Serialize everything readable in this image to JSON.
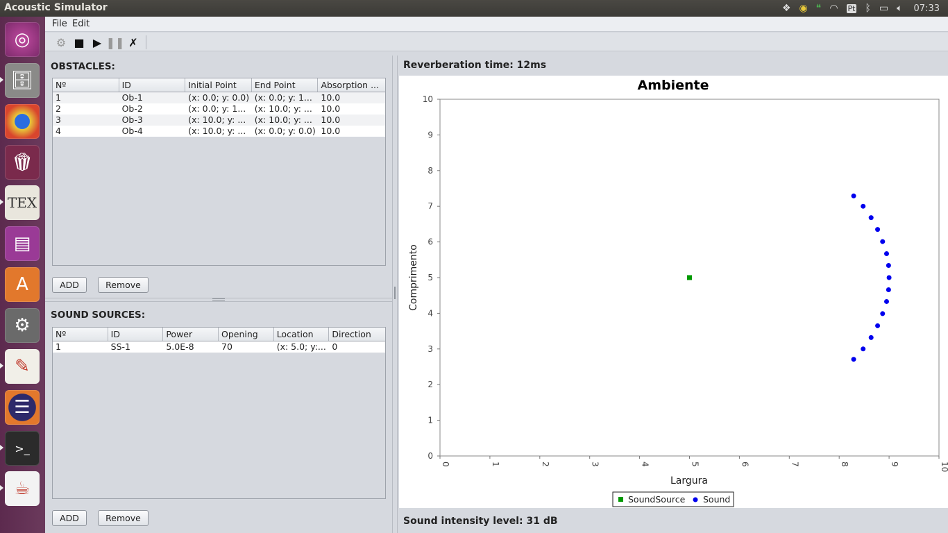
{
  "window": {
    "title": "Acoustic Simulator"
  },
  "tray": {
    "clock": "07:33",
    "icons": [
      "dropbox-icon",
      "chrome-icon",
      "hangouts-icon",
      "wifi-icon",
      "keyboard-icon",
      "bluetooth-icon",
      "battery-icon",
      "volume-icon"
    ],
    "keyboard_label": "Pt"
  },
  "launcher": {
    "items": [
      "ubuntu-dash",
      "file-manager",
      "chrome",
      "popcorn-time",
      "texmaker",
      "workspace-switcher",
      "software-center",
      "system-settings",
      "pdf-reader",
      "eclipse",
      "terminal",
      "java"
    ]
  },
  "menu": {
    "file": "File",
    "edit": "Edit"
  },
  "obstacles": {
    "title": "OBSTACLES:",
    "columns": [
      "Nº",
      "ID",
      "Initial Point",
      "End Point",
      "Absorption ..."
    ],
    "rows": [
      [
        "1",
        "Ob-1",
        "(x: 0.0; y: 0.0)",
        "(x: 0.0; y: 1...",
        "10.0"
      ],
      [
        "2",
        "Ob-2",
        "(x: 0.0; y: 1...",
        "(x: 10.0; y: ...",
        "10.0"
      ],
      [
        "3",
        "Ob-3",
        "(x: 10.0; y: ...",
        "(x: 10.0; y: ...",
        "10.0"
      ],
      [
        "4",
        "Ob-4",
        "(x: 10.0; y: ...",
        "(x: 0.0; y: 0.0)",
        "10.0"
      ]
    ],
    "add_label": "ADD",
    "remove_label": "Remove"
  },
  "sources": {
    "title": "SOUND SOURCES:",
    "columns": [
      "Nº",
      "ID",
      "Power",
      "Opening",
      "Location",
      "Direction"
    ],
    "rows": [
      [
        "1",
        "SS-1",
        "5.0E-8",
        "70",
        "(x: 5.0; y:...",
        "0"
      ]
    ],
    "add_label": "ADD",
    "remove_label": "Remove"
  },
  "reverb_text": "Reverberation time: 12ms",
  "intensity_text": "Sound intensity level: 31 dB",
  "chart_data": {
    "type": "scatter",
    "title": "Ambiente",
    "xlabel": "Largura",
    "ylabel": "Comprimento",
    "xlim": [
      0,
      10
    ],
    "ylim": [
      0,
      10
    ],
    "xticks": [
      "0",
      "1",
      "2",
      "3",
      "4",
      "5",
      "6",
      "7",
      "8",
      "9",
      "10"
    ],
    "yticks": [
      "0",
      "1",
      "2",
      "3",
      "4",
      "5",
      "6",
      "7",
      "8",
      "9",
      "10"
    ],
    "legend_placement": "bottom",
    "series": [
      {
        "name": "SoundSource",
        "color": "#009900",
        "marker": "square",
        "points": [
          [
            5.0,
            5.0
          ]
        ]
      },
      {
        "name": "Sound",
        "color": "#0000ee",
        "marker": "circle",
        "points": [
          [
            8.29,
            7.29
          ],
          [
            8.48,
            7.0
          ],
          [
            8.64,
            6.68
          ],
          [
            8.77,
            6.35
          ],
          [
            8.87,
            6.01
          ],
          [
            8.95,
            5.67
          ],
          [
            8.99,
            5.34
          ],
          [
            9.0,
            5.0
          ],
          [
            8.99,
            4.66
          ],
          [
            8.95,
            4.33
          ],
          [
            8.87,
            3.99
          ],
          [
            8.77,
            3.65
          ],
          [
            8.64,
            3.32
          ],
          [
            8.48,
            3.0
          ],
          [
            8.29,
            2.71
          ]
        ]
      }
    ]
  }
}
